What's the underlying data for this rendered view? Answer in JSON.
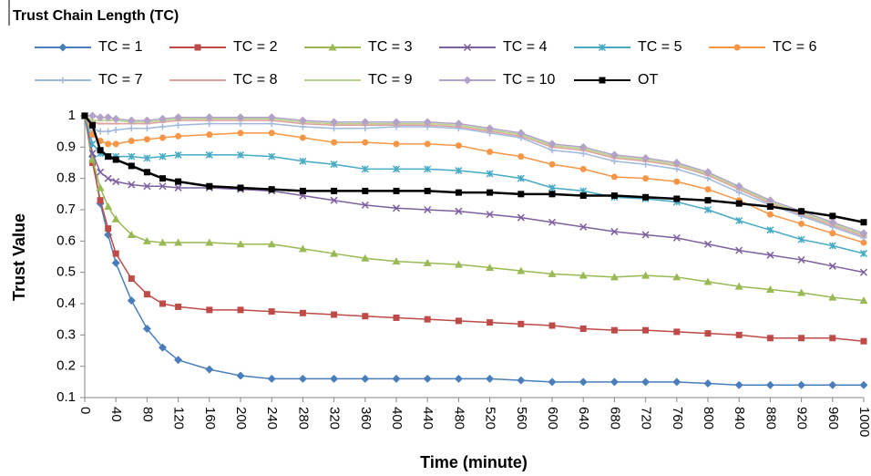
{
  "chart_data": {
    "type": "line",
    "legend_title": "Trust Chain Length (TC)",
    "xlabel": "Time (minute)",
    "ylabel": "Trust Value",
    "x": [
      0,
      10,
      20,
      30,
      40,
      60,
      80,
      100,
      120,
      160,
      200,
      240,
      280,
      320,
      360,
      400,
      440,
      480,
      520,
      560,
      600,
      640,
      680,
      720,
      760,
      800,
      840,
      880,
      920,
      960,
      1000
    ],
    "xlim": [
      0,
      1000
    ],
    "xticks": [
      0,
      40,
      80,
      120,
      160,
      200,
      240,
      280,
      320,
      360,
      400,
      440,
      480,
      520,
      560,
      600,
      640,
      680,
      720,
      760,
      800,
      840,
      880,
      920,
      960,
      1000
    ],
    "ylim": [
      0.1,
      1
    ],
    "yticks": [
      0.1,
      0.2,
      0.3,
      0.4,
      0.5,
      0.6,
      0.7,
      0.8,
      0.9,
      1
    ],
    "series": [
      {
        "name": "TC = 1",
        "color": "#4a7ebb",
        "marker": "diamond",
        "values": [
          1,
          0.87,
          0.72,
          0.62,
          0.53,
          0.41,
          0.32,
          0.26,
          0.22,
          0.19,
          0.17,
          0.16,
          0.16,
          0.16,
          0.16,
          0.16,
          0.16,
          0.16,
          0.16,
          0.155,
          0.15,
          0.15,
          0.15,
          0.15,
          0.15,
          0.145,
          0.14,
          0.14,
          0.14,
          0.14,
          0.14
        ]
      },
      {
        "name": "TC = 2",
        "color": "#be4b48",
        "marker": "square",
        "values": [
          1,
          0.85,
          0.73,
          0.64,
          0.56,
          0.48,
          0.43,
          0.4,
          0.39,
          0.38,
          0.38,
          0.375,
          0.37,
          0.365,
          0.36,
          0.355,
          0.35,
          0.345,
          0.34,
          0.335,
          0.33,
          0.32,
          0.315,
          0.315,
          0.31,
          0.305,
          0.3,
          0.29,
          0.29,
          0.29,
          0.28
        ]
      },
      {
        "name": "TC = 3",
        "color": "#98b954",
        "marker": "triangle",
        "values": [
          1,
          0.86,
          0.77,
          0.71,
          0.67,
          0.62,
          0.6,
          0.595,
          0.595,
          0.595,
          0.59,
          0.59,
          0.575,
          0.56,
          0.545,
          0.535,
          0.53,
          0.525,
          0.515,
          0.505,
          0.495,
          0.49,
          0.485,
          0.49,
          0.485,
          0.47,
          0.455,
          0.445,
          0.435,
          0.42,
          0.41
        ]
      },
      {
        "name": "TC = 4",
        "color": "#7d60a0",
        "marker": "x",
        "values": [
          1,
          0.88,
          0.82,
          0.8,
          0.79,
          0.78,
          0.775,
          0.775,
          0.77,
          0.77,
          0.765,
          0.76,
          0.745,
          0.73,
          0.715,
          0.705,
          0.7,
          0.695,
          0.685,
          0.675,
          0.66,
          0.645,
          0.63,
          0.62,
          0.61,
          0.59,
          0.57,
          0.555,
          0.54,
          0.52,
          0.5
        ]
      },
      {
        "name": "TC = 5",
        "color": "#46aac5",
        "marker": "star",
        "values": [
          1,
          0.91,
          0.88,
          0.87,
          0.87,
          0.87,
          0.865,
          0.87,
          0.875,
          0.875,
          0.875,
          0.87,
          0.855,
          0.845,
          0.83,
          0.83,
          0.83,
          0.825,
          0.815,
          0.8,
          0.77,
          0.76,
          0.74,
          0.735,
          0.725,
          0.7,
          0.665,
          0.635,
          0.605,
          0.585,
          0.56
        ]
      },
      {
        "name": "TC = 6",
        "color": "#f79646",
        "marker": "circle",
        "values": [
          1,
          0.94,
          0.92,
          0.91,
          0.91,
          0.92,
          0.925,
          0.93,
          0.935,
          0.94,
          0.945,
          0.945,
          0.93,
          0.915,
          0.915,
          0.91,
          0.91,
          0.905,
          0.885,
          0.87,
          0.845,
          0.83,
          0.805,
          0.8,
          0.79,
          0.765,
          0.73,
          0.685,
          0.655,
          0.625,
          0.595
        ]
      },
      {
        "name": "TC = 7",
        "color": "#a0b8de",
        "marker": "plus",
        "values": [
          1,
          0.96,
          0.95,
          0.95,
          0.955,
          0.96,
          0.96,
          0.965,
          0.97,
          0.975,
          0.975,
          0.975,
          0.965,
          0.96,
          0.96,
          0.965,
          0.965,
          0.96,
          0.945,
          0.93,
          0.89,
          0.88,
          0.855,
          0.845,
          0.83,
          0.8,
          0.755,
          0.715,
          0.68,
          0.645,
          0.61
        ]
      },
      {
        "name": "TC = 8",
        "color": "#e0a0a0",
        "marker": "dash",
        "values": [
          1,
          0.98,
          0.975,
          0.975,
          0.975,
          0.975,
          0.975,
          0.98,
          0.985,
          0.985,
          0.985,
          0.985,
          0.975,
          0.97,
          0.97,
          0.97,
          0.97,
          0.965,
          0.95,
          0.935,
          0.9,
          0.89,
          0.865,
          0.855,
          0.84,
          0.81,
          0.765,
          0.72,
          0.685,
          0.65,
          0.615
        ]
      },
      {
        "name": "TC = 9",
        "color": "#b5d48a",
        "marker": "dash",
        "values": [
          1,
          0.985,
          0.985,
          0.985,
          0.985,
          0.98,
          0.98,
          0.985,
          0.99,
          0.99,
          0.99,
          0.99,
          0.98,
          0.975,
          0.975,
          0.975,
          0.975,
          0.97,
          0.955,
          0.94,
          0.905,
          0.895,
          0.87,
          0.86,
          0.845,
          0.815,
          0.77,
          0.725,
          0.69,
          0.655,
          0.62
        ]
      },
      {
        "name": "TC = 10",
        "color": "#b3a2c7",
        "marker": "diamond",
        "values": [
          1,
          1,
          0.995,
          0.995,
          0.99,
          0.985,
          0.985,
          0.99,
          0.995,
          0.995,
          0.995,
          0.995,
          0.985,
          0.98,
          0.98,
          0.98,
          0.98,
          0.975,
          0.96,
          0.945,
          0.91,
          0.9,
          0.875,
          0.865,
          0.85,
          0.82,
          0.775,
          0.73,
          0.695,
          0.66,
          0.625
        ]
      },
      {
        "name": "OT",
        "color": "#000000",
        "marker": "square",
        "values": [
          1,
          0.97,
          0.89,
          0.87,
          0.86,
          0.84,
          0.82,
          0.8,
          0.79,
          0.775,
          0.77,
          0.765,
          0.76,
          0.76,
          0.76,
          0.76,
          0.76,
          0.755,
          0.755,
          0.75,
          0.75,
          0.745,
          0.745,
          0.74,
          0.735,
          0.73,
          0.72,
          0.71,
          0.695,
          0.68,
          0.66
        ]
      }
    ]
  }
}
